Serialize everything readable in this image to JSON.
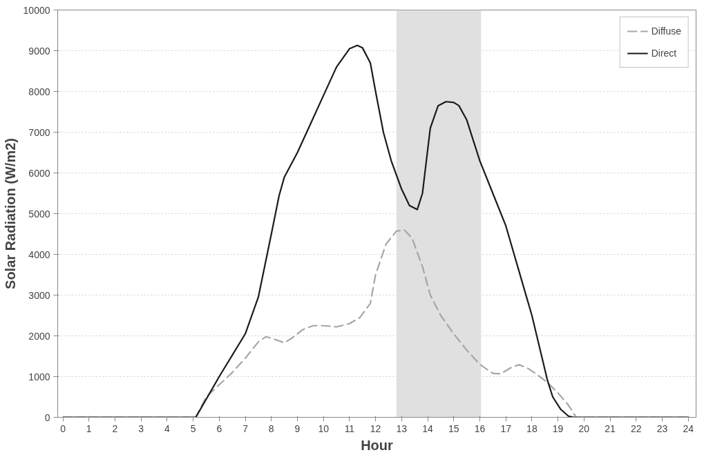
{
  "chart_data": {
    "type": "line",
    "xlabel": "Hour",
    "ylabel": "Solar Radiation (W/m2)",
    "xlim": [
      -0.2,
      24.3
    ],
    "ylim": [
      0,
      10000
    ],
    "xticks": [
      0,
      1,
      2,
      3,
      4,
      5,
      6,
      7,
      8,
      9,
      10,
      11,
      12,
      13,
      14,
      15,
      16,
      17,
      18,
      19,
      20,
      21,
      22,
      23,
      24
    ],
    "yticks": [
      0,
      1000,
      2000,
      3000,
      4000,
      5000,
      6000,
      7000,
      8000,
      9000,
      10000
    ],
    "grid": "y",
    "legend": "top right",
    "marker": "none",
    "bands": [
      {
        "axis": "x",
        "from": 12.8,
        "to": 16.05,
        "color": "#e0e0e0"
      }
    ],
    "series": [
      {
        "name": "Diffuse",
        "color": "#a6a6a6",
        "line_style": "dashed",
        "x": [
          0,
          5.1,
          5.5,
          6,
          6.5,
          7,
          7.5,
          7.8,
          8.1,
          8.5,
          8.8,
          9.2,
          9.6,
          10,
          10.5,
          11,
          11.4,
          11.8,
          12,
          12.4,
          12.8,
          13.1,
          13.4,
          13.8,
          14.1,
          14.5,
          15,
          15.5,
          16,
          16.5,
          16.8,
          17.2,
          17.5,
          17.8,
          18.2,
          18.6,
          19,
          19.4,
          19.7,
          24
        ],
        "values": [
          0,
          0,
          500,
          800,
          1100,
          1450,
          1850,
          1980,
          1920,
          1830,
          1950,
          2150,
          2250,
          2250,
          2220,
          2300,
          2450,
          2800,
          3500,
          4250,
          4570,
          4600,
          4400,
          3700,
          3000,
          2500,
          2050,
          1650,
          1300,
          1080,
          1070,
          1220,
          1290,
          1220,
          1050,
          850,
          600,
          300,
          0,
          0
        ]
      },
      {
        "name": "Direct",
        "color": "#1a1a1a",
        "line_style": "solid",
        "x": [
          0,
          5.1,
          6,
          7,
          7.5,
          8,
          8.3,
          8.5,
          9,
          9.5,
          10,
          10.5,
          11,
          11.3,
          11.5,
          11.8,
          12,
          12.3,
          12.6,
          13,
          13.3,
          13.6,
          13.8,
          14.1,
          14.4,
          14.7,
          15,
          15.2,
          15.5,
          16,
          16.5,
          17,
          17.5,
          18,
          18.3,
          18.6,
          18.8,
          19.1,
          19.4,
          19.6,
          24
        ],
        "values": [
          0,
          0,
          1000,
          2050,
          2950,
          4500,
          5450,
          5900,
          6500,
          7200,
          7900,
          8600,
          9050,
          9130,
          9070,
          8700,
          8000,
          7000,
          6300,
          5600,
          5200,
          5100,
          5500,
          7100,
          7650,
          7750,
          7730,
          7650,
          7300,
          6300,
          5500,
          4700,
          3600,
          2500,
          1700,
          900,
          500,
          200,
          30,
          0,
          0
        ]
      }
    ]
  }
}
